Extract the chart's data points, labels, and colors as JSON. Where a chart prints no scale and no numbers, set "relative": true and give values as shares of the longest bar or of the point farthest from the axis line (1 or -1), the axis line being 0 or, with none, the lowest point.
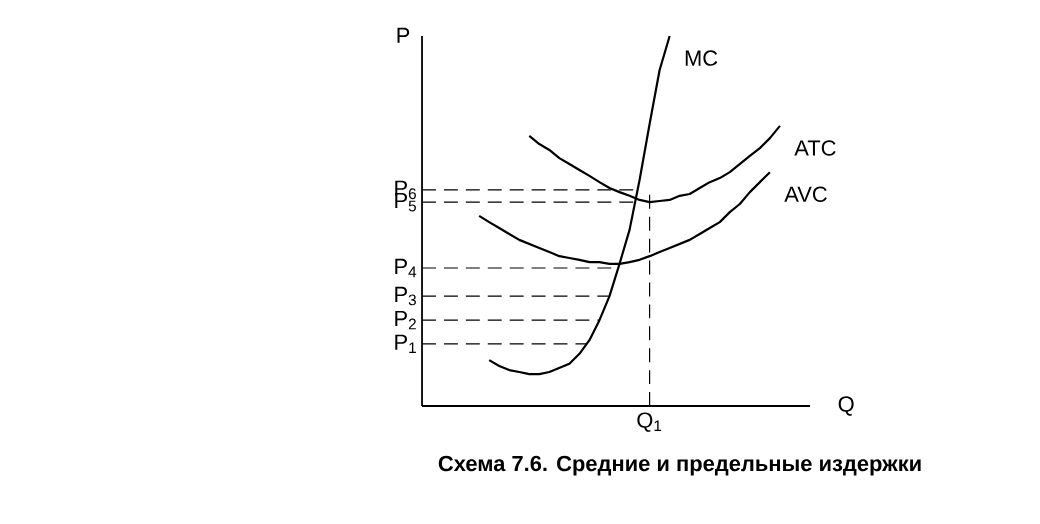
{
  "chart_data": {
    "type": "line",
    "relative": true,
    "xlabel": "Q",
    "ylabel": "P",
    "categories": [
      null,
      null,
      null,
      null,
      null,
      null,
      null,
      null,
      null,
      null,
      null,
      null,
      null,
      null,
      null,
      null,
      null,
      null,
      null,
      null,
      null,
      null,
      null,
      null,
      null,
      null,
      null,
      null,
      null,
      null,
      null
    ],
    "series": [
      {
        "name": "MC",
        "color": "#000000",
        "values": [
          null,
          0.124,
          0.108,
          0.097,
          0.092,
          0.086,
          0.086,
          0.092,
          0.103,
          0.114,
          0.141,
          0.178,
          0.232,
          0.297,
          0.384,
          0.476,
          0.611,
          0.762,
          0.908,
          1.0,
          null,
          null,
          null,
          null,
          null,
          null,
          null,
          null,
          null,
          null,
          null
        ]
      },
      {
        "name": "ATC",
        "color": "#000000",
        "values": [
          null,
          null,
          null,
          null,
          null,
          0.73,
          0.708,
          0.692,
          0.67,
          0.654,
          0.638,
          0.622,
          0.605,
          0.589,
          0.578,
          0.568,
          0.557,
          0.551,
          0.554,
          0.557,
          0.568,
          0.573,
          0.589,
          0.605,
          0.616,
          0.632,
          0.654,
          0.676,
          0.697,
          0.724,
          0.757
        ]
      },
      {
        "name": "AVC",
        "color": "#000000",
        "values": [
          0.514,
          0.497,
          0.481,
          0.465,
          0.449,
          0.438,
          0.427,
          0.416,
          0.405,
          0.4,
          0.395,
          0.389,
          0.389,
          0.384,
          0.384,
          0.389,
          0.395,
          0.405,
          0.416,
          0.427,
          0.438,
          0.449,
          0.465,
          0.481,
          0.497,
          0.524,
          0.546,
          0.578,
          0.605,
          0.632,
          null
        ]
      }
    ],
    "ref_lines": [
      {
        "axis": "y",
        "value": 0.584,
        "label": "P$_{6}$",
        "line_style": "dashed"
      },
      {
        "axis": "y",
        "value": 0.551,
        "label": "P$_{5}$",
        "line_style": "dashed"
      },
      {
        "axis": "y",
        "value": 0.373,
        "label": "P$_{4}$",
        "line_style": "dashed"
      },
      {
        "axis": "y",
        "value": 0.297,
        "label": "P$_{3}$",
        "line_style": "dashed"
      },
      {
        "axis": "y",
        "value": 0.232,
        "label": "P$_{2}$",
        "line_style": "dashed"
      },
      {
        "axis": "y",
        "value": 0.168,
        "label": "P$_{1}$",
        "line_style": "dashed"
      }
    ],
    "annotations": [
      "Q$_{1}$",
      "Схема 7.6. Средние и предельные издержки"
    ]
  }
}
